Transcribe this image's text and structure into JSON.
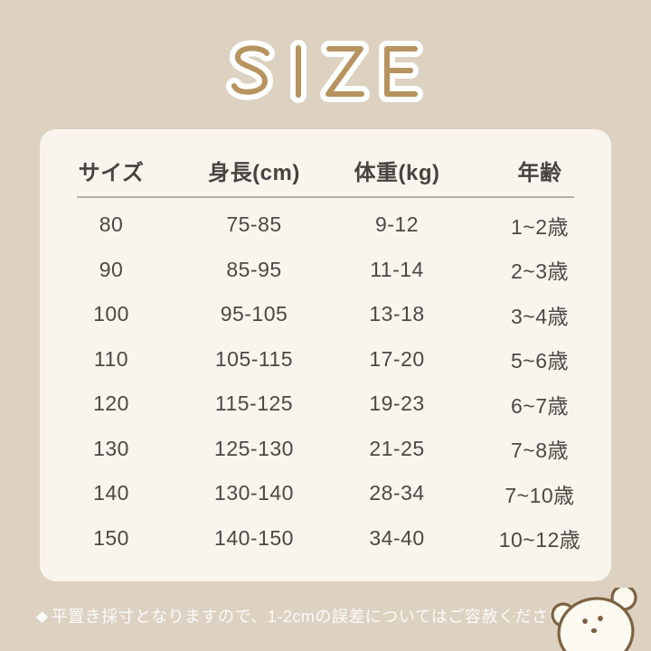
{
  "page": {
    "title_wordmark": "SIZE"
  },
  "size_table": {
    "headers": [
      "サイズ",
      "身長(cm)",
      "体重(kg)",
      "年齢"
    ],
    "rows": [
      [
        "80",
        "75-85",
        "9-12",
        "1~2歳"
      ],
      [
        "90",
        "85-95",
        "11-14",
        "2~3歳"
      ],
      [
        "100",
        "95-105",
        "13-18",
        "3~4歳"
      ],
      [
        "110",
        "105-115",
        "17-20",
        "5~6歳"
      ],
      [
        "120",
        "115-125",
        "19-23",
        "6~7歳"
      ],
      [
        "130",
        "125-130",
        "21-25",
        "7~8歳"
      ],
      [
        "140",
        "130-140",
        "28-34",
        "7~10歳"
      ],
      [
        "150",
        "140-150",
        "34-40",
        "10~12歳"
      ]
    ]
  },
  "footer": {
    "marker": "◆",
    "note": "平置き採寸となりますので、1-2cmの誤差についてはご容赦ください。"
  },
  "icons": {
    "bear": "bear-face-icon",
    "diamond": "diamond-bullet-icon"
  },
  "colors": {
    "background": "#ddd1c1",
    "card": "#f9f5ed",
    "text": "#4c4845",
    "header_text": "#474340",
    "header_line": "#b5afa7",
    "title": "#b7935f",
    "halo": "#ffffff",
    "footer_text": "#fcfbf9",
    "bear_outline": "#7d6141",
    "bear_fill": "#fcf9f1"
  }
}
